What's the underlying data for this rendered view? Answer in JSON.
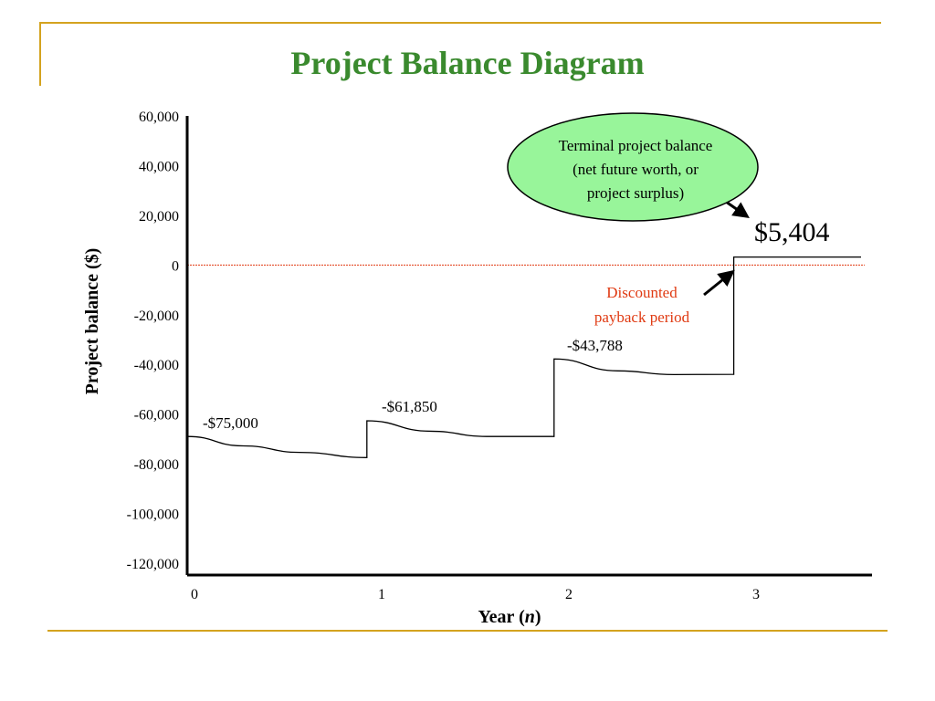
{
  "slide": {
    "title": "Project Balance Diagram",
    "accent_color": "#d4a31f",
    "title_color": "#3a8a2e"
  },
  "chart_data": {
    "type": "line",
    "title": "Project Balance Diagram",
    "xlabel_prefix": "Year (",
    "xlabel_var": "n",
    "xlabel_suffix": ")",
    "ylabel": "Project balance ($)",
    "yticks": [
      "60,000",
      "40,000",
      "20,000",
      "0",
      "-20,000",
      "-40,000",
      "-60,000",
      "-80,000",
      "-100,000",
      "-120,000"
    ],
    "ytick_values": [
      60000,
      40000,
      20000,
      0,
      -20000,
      -40000,
      -60000,
      -80000,
      -100000,
      -120000
    ],
    "xticks": [
      "0",
      "1",
      "2",
      "3"
    ],
    "ylim": [
      -120000,
      60000
    ],
    "xlim": [
      0,
      3.6
    ],
    "grid": false,
    "series": [
      {
        "points": [
          {
            "x": 0.0,
            "y": -69000
          },
          {
            "x": 0.3,
            "y": -72800
          },
          {
            "x": 0.6,
            "y": -75400
          },
          {
            "x": 0.96,
            "y": -77500
          },
          {
            "x": 0.96,
            "y": -62700
          },
          {
            "x": 1.3,
            "y": -66900
          },
          {
            "x": 1.6,
            "y": -69000
          },
          {
            "x": 1.96,
            "y": -69000
          },
          {
            "x": 1.96,
            "y": -37800
          },
          {
            "x": 2.3,
            "y": -42600
          },
          {
            "x": 2.6,
            "y": -44100
          },
          {
            "x": 2.92,
            "y": -44000
          },
          {
            "x": 2.92,
            "y": 3200
          },
          {
            "x": 3.6,
            "y": 3200
          }
        ]
      }
    ],
    "reference_line": {
      "y": 0,
      "color": "#e03a12"
    },
    "annotations": {
      "a0": "-$75,000",
      "a1": "-$61,850",
      "a2": "-$43,788",
      "terminal_value": "$5,404",
      "discounted_line1": "Discounted",
      "discounted_line2": "payback period",
      "bubble_line1": "Terminal project balance",
      "bubble_line2": "(net future worth, or",
      "bubble_line3": "project surplus)"
    },
    "bubble_color": "#98f59a"
  }
}
